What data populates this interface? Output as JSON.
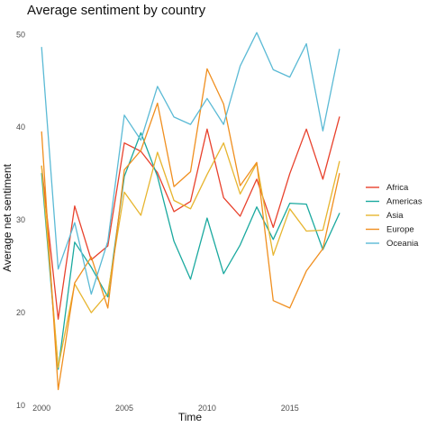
{
  "chart_data": {
    "type": "line",
    "title": "Average sentiment by country",
    "xlabel": "Time",
    "ylabel": "Average net sentiment",
    "xlim": [
      1999.5,
      2018.5
    ],
    "ylim": [
      10,
      51
    ],
    "x_ticks": [
      2000,
      2005,
      2010,
      2015
    ],
    "x_tick_labels": [
      "2000",
      "2005",
      "2010",
      "2015"
    ],
    "y_ticks": [
      10,
      20,
      30,
      40,
      50
    ],
    "y_tick_labels": [
      "10",
      "20",
      "30",
      "40",
      "50"
    ],
    "grid": false,
    "legend": "right",
    "x": [
      2000,
      2001,
      2002,
      2003,
      2004,
      2005,
      2006,
      2007,
      2008,
      2009,
      2010,
      2011,
      2012,
      2013,
      2014,
      2015,
      2016,
      2017,
      2018
    ],
    "series": [
      {
        "name": "Africa",
        "color": "#e8412c",
        "values": [
          35.8,
          19.3,
          31.5,
          25.7,
          27.2,
          38.3,
          37.4,
          35.1,
          30.9,
          32.0,
          39.8,
          32.4,
          30.4,
          34.4,
          29.2,
          35.0,
          39.8,
          34.4,
          41.1
        ]
      },
      {
        "name": "Americas",
        "color": "#1aa99f",
        "values": [
          35.0,
          13.9,
          27.6,
          24.9,
          21.7,
          34.7,
          39.4,
          34.7,
          27.7,
          23.6,
          30.2,
          24.2,
          27.3,
          31.4,
          27.9,
          31.8,
          31.7,
          26.8,
          30.7
        ]
      },
      {
        "name": "Asia",
        "color": "#e7b52f",
        "values": [
          35.8,
          14.1,
          23.1,
          20.0,
          22.1,
          33.0,
          30.5,
          37.3,
          32.1,
          31.2,
          34.9,
          38.3,
          32.8,
          36.1,
          26.2,
          31.2,
          28.8,
          28.9,
          36.3
        ]
      },
      {
        "name": "Europe",
        "color": "#f08f1f",
        "values": [
          39.5,
          11.7,
          23.2,
          26.0,
          20.5,
          35.4,
          37.5,
          42.6,
          33.6,
          35.2,
          46.3,
          42.5,
          33.7,
          36.2,
          21.3,
          20.5,
          24.5,
          26.9,
          35.0
        ]
      },
      {
        "name": "Oceania",
        "color": "#5bbad5",
        "values": [
          48.6,
          24.7,
          29.7,
          22.0,
          27.7,
          41.3,
          38.6,
          44.4,
          41.1,
          40.3,
          43.1,
          40.3,
          46.6,
          50.2,
          46.2,
          45.4,
          49.0,
          39.6,
          48.4
        ]
      }
    ]
  }
}
